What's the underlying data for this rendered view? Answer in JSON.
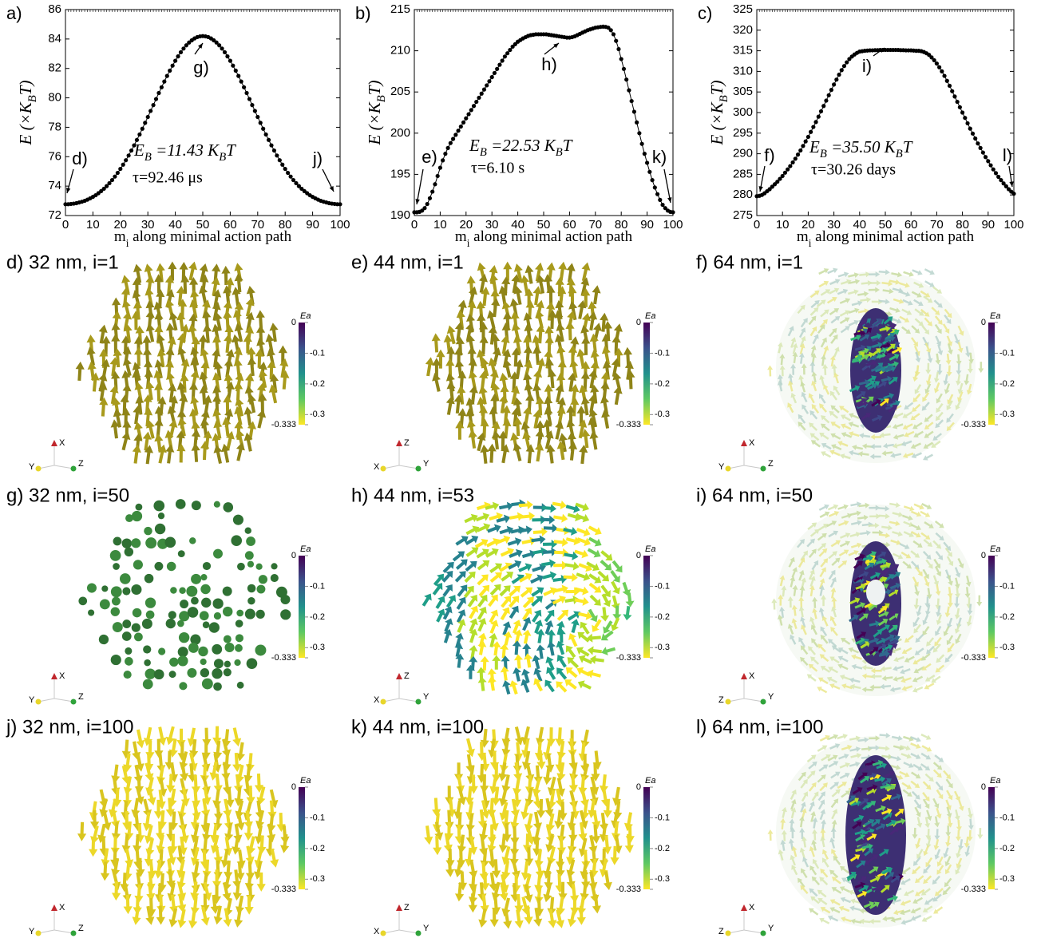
{
  "chart_data": [
    {
      "type": "line",
      "markers": true,
      "panel_label": "a)",
      "color": "#000000",
      "xlabel": [
        "m",
        "i",
        " along minimal action path"
      ],
      "ylabel": [
        "E (×K",
        "B",
        "T)"
      ],
      "x": [
        0,
        1,
        2,
        3,
        4,
        5,
        6,
        7,
        8,
        9,
        10,
        11,
        12,
        13,
        14,
        15,
        16,
        17,
        18,
        19,
        20,
        21,
        22,
        23,
        24,
        25,
        26,
        27,
        28,
        29,
        30,
        31,
        32,
        33,
        34,
        35,
        36,
        37,
        38,
        39,
        40,
        41,
        42,
        43,
        44,
        45,
        46,
        47,
        48,
        49,
        50,
        51,
        52,
        53,
        54,
        55,
        56,
        57,
        58,
        59,
        60,
        61,
        62,
        63,
        64,
        65,
        66,
        67,
        68,
        69,
        70,
        71,
        72,
        73,
        74,
        75,
        76,
        77,
        78,
        79,
        80,
        81,
        82,
        83,
        84,
        85,
        86,
        87,
        88,
        89,
        90,
        91,
        92,
        93,
        94,
        95,
        96,
        97,
        98,
        99,
        100
      ],
      "values": [
        72.77,
        72.77,
        72.79,
        72.81,
        72.84,
        72.89,
        72.94,
        73.0,
        73.08,
        73.17,
        73.27,
        73.38,
        73.52,
        73.66,
        73.82,
        74.0,
        74.2,
        74.41,
        74.65,
        74.9,
        75.17,
        75.46,
        75.76,
        76.08,
        76.42,
        76.77,
        77.14,
        77.51,
        77.9,
        78.3,
        78.7,
        79.11,
        79.51,
        79.92,
        80.33,
        80.72,
        81.11,
        81.49,
        81.85,
        82.19,
        82.52,
        82.82,
        83.1,
        83.35,
        83.57,
        83.76,
        83.91,
        84.04,
        84.13,
        84.18,
        84.2,
        84.18,
        84.13,
        84.04,
        83.91,
        83.76,
        83.57,
        83.35,
        83.1,
        82.82,
        82.52,
        82.19,
        81.85,
        81.49,
        81.11,
        80.72,
        80.33,
        79.92,
        79.51,
        79.11,
        78.7,
        78.3,
        77.9,
        77.51,
        77.14,
        76.77,
        76.42,
        76.08,
        75.76,
        75.46,
        75.17,
        74.9,
        74.65,
        74.41,
        74.2,
        74.0,
        73.82,
        73.66,
        73.52,
        73.38,
        73.27,
        73.17,
        73.08,
        73.0,
        72.94,
        72.89,
        72.84,
        72.81,
        72.79,
        72.77,
        72.77
      ],
      "xlim": [
        0,
        100
      ],
      "xticks": [
        0,
        10,
        20,
        30,
        40,
        50,
        60,
        70,
        80,
        90,
        100
      ],
      "ylim": [
        72,
        86
      ],
      "yticks": [
        72,
        74,
        76,
        78,
        80,
        82,
        84,
        86
      ],
      "annotations": {
        "barrier": [
          "E",
          "B",
          " =11.43 K",
          "B",
          "T"
        ],
        "tau": "τ=92.46 μs",
        "points": [
          "d)",
          "g)",
          "j)"
        ]
      }
    },
    {
      "type": "line",
      "markers": true,
      "panel_label": "b)",
      "color": "#000000",
      "xlabel": [
        "m",
        "i",
        " along minimal action path"
      ],
      "ylabel": [
        "E (×K",
        "B",
        "T)"
      ],
      "x": [
        0,
        1,
        2,
        3,
        4,
        5,
        6,
        7,
        8,
        9,
        10,
        11,
        12,
        13,
        14,
        15,
        16,
        17,
        18,
        19,
        20,
        21,
        22,
        23,
        24,
        25,
        26,
        27,
        28,
        29,
        30,
        31,
        32,
        33,
        34,
        35,
        36,
        37,
        38,
        39,
        40,
        41,
        42,
        43,
        44,
        45,
        46,
        47,
        48,
        49,
        50,
        51,
        52,
        53,
        54,
        55,
        56,
        57,
        58,
        59,
        60,
        61,
        62,
        63,
        64,
        65,
        66,
        67,
        68,
        69,
        70,
        71,
        72,
        73,
        74,
        75,
        76,
        77,
        78,
        79,
        80,
        81,
        82,
        83,
        84,
        85,
        86,
        87,
        88,
        89,
        90,
        91,
        92,
        93,
        94,
        95,
        96,
        97,
        98,
        99,
        100
      ],
      "values": [
        190.4,
        190.4,
        190.45,
        190.6,
        190.9,
        191.4,
        192.1,
        192.9,
        193.8,
        194.8,
        195.8,
        196.7,
        197.5,
        198.2,
        198.8,
        199.3,
        199.8,
        200.3,
        200.8,
        201.3,
        201.8,
        202.3,
        202.8,
        203.3,
        203.8,
        204.3,
        204.8,
        205.3,
        205.8,
        206.3,
        206.8,
        207.3,
        207.8,
        208.3,
        208.8,
        209.3,
        209.7,
        210.1,
        210.5,
        210.8,
        211.1,
        211.3,
        211.5,
        211.65,
        211.8,
        211.9,
        211.95,
        212.0,
        212.0,
        212.0,
        212.0,
        212.0,
        211.95,
        211.9,
        211.85,
        211.8,
        211.75,
        211.7,
        211.65,
        211.6,
        211.6,
        211.65,
        211.75,
        211.9,
        212.05,
        212.2,
        212.35,
        212.5,
        212.6,
        212.7,
        212.8,
        212.85,
        212.9,
        212.93,
        212.9,
        212.8,
        212.5,
        212.0,
        211.2,
        210.2,
        209.0,
        207.8,
        206.5,
        205.2,
        203.9,
        202.6,
        201.3,
        200.0,
        198.7,
        197.5,
        196.4,
        195.3,
        194.3,
        193.4,
        192.6,
        191.9,
        191.3,
        190.9,
        190.6,
        190.45,
        190.4
      ],
      "xlim": [
        0,
        100
      ],
      "xticks": [
        0,
        10,
        20,
        30,
        40,
        50,
        60,
        70,
        80,
        90,
        100
      ],
      "ylim": [
        190,
        215
      ],
      "yticks": [
        190,
        195,
        200,
        205,
        210,
        215
      ],
      "annotations": {
        "barrier": [
          "E",
          "B",
          " =22.53 K",
          "B",
          "T"
        ],
        "tau": "τ=6.10 s",
        "points": [
          "e)",
          "h)",
          "k)"
        ]
      }
    },
    {
      "type": "line",
      "markers": true,
      "panel_label": "c)",
      "color": "#000000",
      "xlabel": [
        "m",
        "i",
        " along minimal action path"
      ],
      "ylabel": [
        "E (×K",
        "B",
        "T)"
      ],
      "x": [
        0,
        1,
        2,
        3,
        4,
        5,
        6,
        7,
        8,
        9,
        10,
        11,
        12,
        13,
        14,
        15,
        16,
        17,
        18,
        19,
        20,
        21,
        22,
        23,
        24,
        25,
        26,
        27,
        28,
        29,
        30,
        31,
        32,
        33,
        34,
        35,
        36,
        37,
        38,
        39,
        40,
        41,
        42,
        43,
        44,
        45,
        46,
        47,
        48,
        49,
        50,
        51,
        52,
        53,
        54,
        55,
        56,
        57,
        58,
        59,
        60,
        61,
        62,
        63,
        64,
        65,
        66,
        67,
        68,
        69,
        70,
        71,
        72,
        73,
        74,
        75,
        76,
        77,
        78,
        79,
        80,
        81,
        82,
        83,
        84,
        85,
        86,
        87,
        88,
        89,
        90,
        91,
        92,
        93,
        94,
        95,
        96,
        97,
        98,
        99,
        100
      ],
      "values": [
        279.7,
        279.8,
        280.0,
        280.4,
        280.9,
        281.4,
        282.0,
        282.6,
        283.2,
        283.9,
        284.6,
        285.4,
        286.2,
        287.0,
        287.9,
        288.8,
        289.8,
        290.8,
        291.9,
        293.0,
        294.1,
        295.3,
        296.5,
        297.7,
        299.0,
        300.3,
        301.6,
        302.9,
        304.2,
        305.5,
        306.8,
        308.0,
        309.2,
        310.3,
        311.3,
        312.2,
        313.0,
        313.6,
        314.1,
        314.5,
        314.8,
        314.9,
        315.0,
        315.05,
        315.1,
        315.1,
        315.15,
        315.15,
        315.2,
        315.2,
        315.2,
        315.2,
        315.2,
        315.2,
        315.2,
        315.2,
        315.15,
        315.15,
        315.1,
        315.1,
        315.1,
        315.05,
        315.0,
        315.0,
        314.9,
        314.7,
        314.4,
        314.0,
        313.4,
        312.7,
        311.9,
        311.0,
        310.0,
        308.9,
        307.7,
        306.5,
        305.2,
        303.9,
        302.6,
        301.3,
        300.0,
        298.7,
        297.4,
        296.1,
        294.9,
        293.7,
        292.5,
        291.4,
        290.3,
        289.2,
        288.2,
        287.2,
        286.2,
        285.3,
        284.4,
        283.6,
        282.8,
        282.1,
        281.4,
        280.8,
        280.3
      ],
      "xlim": [
        0,
        100
      ],
      "xticks": [
        0,
        10,
        20,
        30,
        40,
        50,
        60,
        70,
        80,
        90,
        100
      ],
      "ylim": [
        275,
        325
      ],
      "yticks": [
        275,
        280,
        285,
        290,
        295,
        300,
        305,
        310,
        315,
        320,
        325
      ],
      "annotations": {
        "barrier": [
          "E",
          "B",
          " =35.50 K",
          "B",
          "T"
        ],
        "tau": "τ=30.26 days",
        "points": [
          "f)",
          "i)",
          "l)"
        ]
      }
    }
  ],
  "colorbar": {
    "label": "Ea",
    "ticks": [
      0,
      -0.1,
      -0.2,
      -0.3,
      -0.333
    ]
  },
  "panels": [
    {
      "title": "d) 32 nm, i=1",
      "axes": [
        "X",
        "Y",
        "Z"
      ]
    },
    {
      "title": "e) 44 nm, i=1",
      "axes": [
        "Z",
        "X",
        "Y"
      ]
    },
    {
      "title": "f) 64 nm, i=1",
      "axes": [
        "X",
        "Y",
        "Z"
      ]
    },
    {
      "title": "g) 32 nm, i=50",
      "axes": [
        "X",
        "Y",
        "Z"
      ]
    },
    {
      "title": "h) 44 nm, i=53",
      "axes": [
        "Z",
        "X",
        "Y"
      ]
    },
    {
      "title": "i) 64 nm, i=50",
      "axes": [
        "X",
        "Z",
        "Y"
      ]
    },
    {
      "title": "j) 32 nm, i=100",
      "axes": [
        "X",
        "Y",
        "Z"
      ]
    },
    {
      "title": "k) 44 nm, i=100",
      "axes": [
        "Z",
        "X",
        "Y"
      ]
    },
    {
      "title": "l) 64 nm, i=100",
      "axes": [
        "X",
        "Z",
        "Y"
      ]
    }
  ]
}
